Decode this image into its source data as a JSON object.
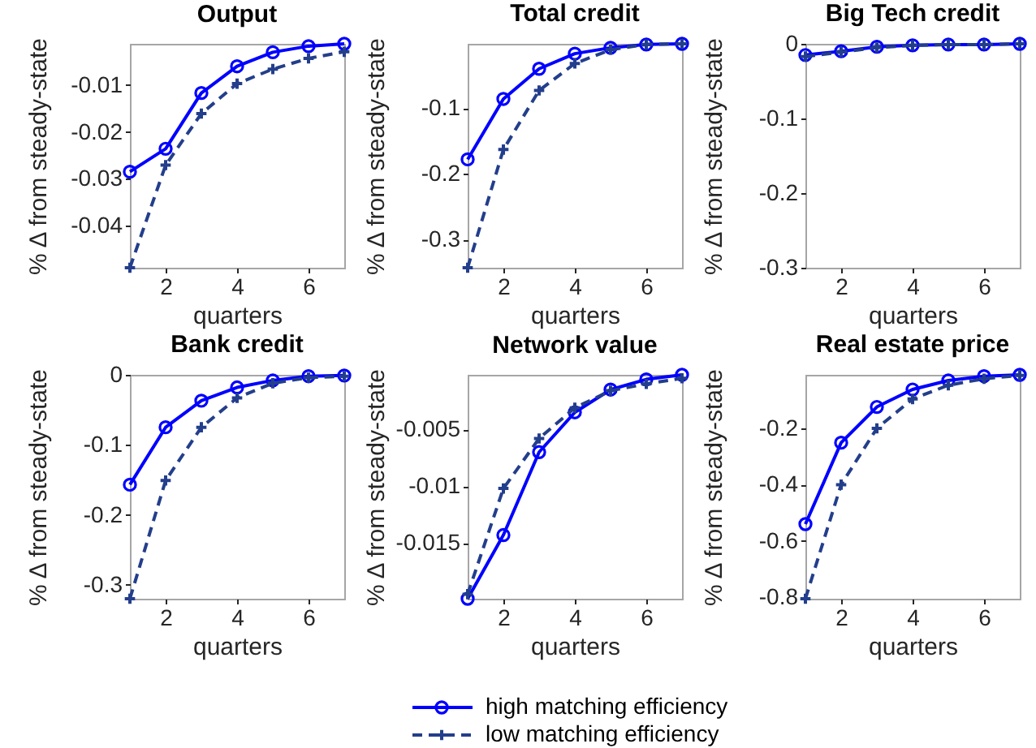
{
  "chart_data": [
    {
      "type": "line",
      "title": "Output",
      "xlabel": "quarters",
      "ylabel": "% Δ from steady-state",
      "x": [
        1,
        2,
        3,
        4,
        5,
        6,
        7
      ],
      "xlim": [
        1,
        7
      ],
      "xticks": [
        2,
        4,
        6
      ],
      "ylim": [
        -0.049,
        -0.0012
      ],
      "yticks": [
        -0.04,
        -0.03,
        -0.02,
        -0.01
      ],
      "legend": "bottom",
      "series": [
        {
          "name": "high matching efficiency",
          "color": "#0000ff",
          "marker": "circle",
          "line_style": "solid",
          "values": [
            -0.0285,
            -0.0236,
            -0.0117,
            -0.006,
            -0.003,
            -0.0017,
            -0.0012
          ]
        },
        {
          "name": "low matching efficiency",
          "color": "#233e8b",
          "marker": "cross",
          "line_style": "dashed",
          "values": [
            -0.049,
            -0.0271,
            -0.0161,
            -0.0097,
            -0.0066,
            -0.0043,
            -0.0029
          ]
        }
      ]
    },
    {
      "type": "line",
      "title": "Total credit",
      "xlabel": "quarters",
      "ylabel": "% Δ from steady-state",
      "x": [
        1,
        2,
        3,
        4,
        5,
        6,
        7
      ],
      "xlim": [
        1,
        7
      ],
      "xticks": [
        2,
        4,
        6
      ],
      "ylim": [
        -0.343,
        -0.002
      ],
      "yticks": [
        -0.3,
        -0.2,
        -0.1
      ],
      "legend": "bottom",
      "series": [
        {
          "name": "high matching efficiency",
          "color": "#0000ff",
          "marker": "circle",
          "line_style": "solid",
          "values": [
            -0.178,
            -0.086,
            -0.04,
            -0.017,
            -0.008,
            -0.003,
            -0.002
          ]
        },
        {
          "name": "low matching efficiency",
          "color": "#233e8b",
          "marker": "cross",
          "line_style": "dashed",
          "values": [
            -0.343,
            -0.163,
            -0.073,
            -0.032,
            -0.011,
            -0.003,
            -0.002
          ]
        }
      ]
    },
    {
      "type": "line",
      "title": "Big Tech credit",
      "xlabel": "quarters",
      "ylabel": "% Δ from steady-state",
      "x": [
        1,
        2,
        3,
        4,
        5,
        6,
        7
      ],
      "xlim": [
        1,
        7
      ],
      "xticks": [
        2,
        4,
        6
      ],
      "ylim": [
        -0.3,
        0
      ],
      "yticks": [
        -0.3,
        -0.2,
        -0.1,
        0
      ],
      "legend": "bottom",
      "series": [
        {
          "name": "high matching efficiency",
          "color": "#0000ff",
          "marker": "circle",
          "line_style": "solid",
          "values": [
            -0.015,
            -0.01,
            -0.004,
            -0.002,
            -0.001,
            -0.001,
            0
          ]
        },
        {
          "name": "low matching efficiency",
          "color": "#233e8b",
          "marker": "cross",
          "line_style": "dashed",
          "values": [
            -0.017,
            -0.011,
            -0.005,
            -0.002,
            -0.001,
            -0.001,
            0
          ]
        }
      ]
    },
    {
      "type": "line",
      "title": "Bank credit",
      "xlabel": "quarters",
      "ylabel": "% Δ from steady-state",
      "x": [
        1,
        2,
        3,
        4,
        5,
        6,
        7
      ],
      "xlim": [
        1,
        7
      ],
      "xticks": [
        2,
        4,
        6
      ],
      "ylim": [
        -0.32,
        0
      ],
      "yticks": [
        -0.3,
        -0.2,
        -0.1,
        0
      ],
      "legend": "bottom",
      "series": [
        {
          "name": "high matching efficiency",
          "color": "#0000ff",
          "marker": "circle",
          "line_style": "solid",
          "values": [
            -0.157,
            -0.075,
            -0.037,
            -0.018,
            -0.008,
            -0.002,
            -0.001
          ]
        },
        {
          "name": "low matching efficiency",
          "color": "#233e8b",
          "marker": "cross",
          "line_style": "dashed",
          "values": [
            -0.32,
            -0.151,
            -0.075,
            -0.033,
            -0.012,
            -0.004,
            -0.002
          ]
        }
      ]
    },
    {
      "type": "line",
      "title": "Network value",
      "xlabel": "quarters",
      "ylabel": "% Δ from steady-state",
      "x": [
        1,
        2,
        3,
        4,
        5,
        6,
        7
      ],
      "xlim": [
        1,
        7
      ],
      "xticks": [
        2,
        4,
        6
      ],
      "ylim": [
        -0.0199,
        -0.0002
      ],
      "yticks": [
        -0.015,
        -0.01,
        -0.005
      ],
      "legend": "bottom",
      "series": [
        {
          "name": "high matching efficiency",
          "color": "#0000ff",
          "marker": "circle",
          "line_style": "solid",
          "values": [
            -0.0199,
            -0.0143,
            -0.007,
            -0.0035,
            -0.0015,
            -0.0006,
            -0.0002
          ]
        },
        {
          "name": "low matching efficiency",
          "color": "#233e8b",
          "marker": "cross",
          "line_style": "dashed",
          "values": [
            -0.0195,
            -0.0102,
            -0.0058,
            -0.0031,
            -0.0016,
            -0.001,
            -0.0005
          ]
        }
      ]
    },
    {
      "type": "line",
      "title": "Real estate price",
      "xlabel": "quarters",
      "ylabel": "% Δ from steady-state",
      "x": [
        1,
        2,
        3,
        4,
        5,
        6,
        7
      ],
      "xlim": [
        1,
        7
      ],
      "xticks": [
        2,
        4,
        6
      ],
      "ylim": [
        -0.805,
        -0.01
      ],
      "yticks": [
        -0.8,
        -0.6,
        -0.4,
        -0.2
      ],
      "legend": "bottom",
      "series": [
        {
          "name": "high matching efficiency",
          "color": "#0000ff",
          "marker": "circle",
          "line_style": "solid",
          "values": [
            -0.54,
            -0.251,
            -0.124,
            -0.062,
            -0.03,
            -0.015,
            -0.01
          ]
        },
        {
          "name": "low matching efficiency",
          "color": "#233e8b",
          "marker": "cross",
          "line_style": "dashed",
          "values": [
            -0.805,
            -0.4,
            -0.2,
            -0.096,
            -0.047,
            -0.024,
            -0.012
          ]
        }
      ]
    }
  ]
}
